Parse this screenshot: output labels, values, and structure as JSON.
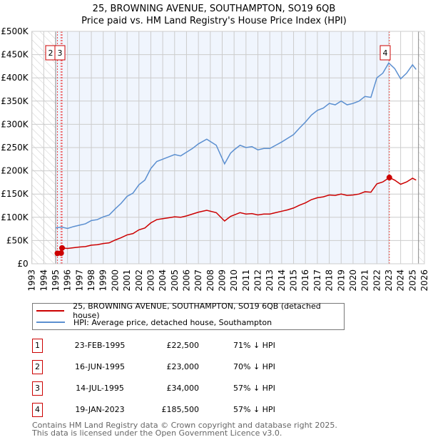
{
  "chart_data": {
    "type": "line",
    "title": "25, BROWNING AVENUE, SOUTHAMPTON, SO19 6QB",
    "subtitle": "Price paid vs. HM Land Registry's House Price Index (HPI)",
    "xlim": [
      1993,
      2026
    ],
    "ylim": [
      0,
      500000
    ],
    "x_ticks": [
      "1993",
      "1994",
      "1995",
      "1996",
      "1997",
      "1998",
      "1999",
      "2000",
      "2001",
      "2002",
      "2003",
      "2004",
      "2005",
      "2006",
      "2007",
      "2008",
      "2009",
      "2010",
      "2011",
      "2012",
      "2013",
      "2014",
      "2015",
      "2016",
      "2017",
      "2018",
      "2019",
      "2020",
      "2021",
      "2022",
      "2023",
      "2024",
      "2025",
      "2026"
    ],
    "y_ticks": [
      {
        "v": 0,
        "label": "£0"
      },
      {
        "v": 50000,
        "label": "£50K"
      },
      {
        "v": 100000,
        "label": "£100K"
      },
      {
        "v": 150000,
        "label": "£150K"
      },
      {
        "v": 200000,
        "label": "£200K"
      },
      {
        "v": 250000,
        "label": "£250K"
      },
      {
        "v": 300000,
        "label": "£300K"
      },
      {
        "v": 350000,
        "label": "£350K"
      },
      {
        "v": 400000,
        "label": "£400K"
      },
      {
        "v": 450000,
        "label": "£450K"
      },
      {
        "v": 500000,
        "label": "£500K"
      }
    ],
    "grid": true,
    "series": [
      {
        "name": "HPI: Average price, detached house, Southampton",
        "color": "#5b8fd0",
        "x": [
          1995,
          1995.5,
          1996,
          1996.5,
          1997,
          1997.5,
          1998,
          1998.5,
          1999,
          1999.5,
          2000,
          2000.5,
          2001,
          2001.5,
          2002,
          2002.5,
          2003,
          2003.5,
          2004,
          2004.5,
          2005,
          2005.5,
          2006,
          2006.5,
          2007,
          2007.7,
          2008.5,
          2009.2,
          2009.7,
          2010,
          2010.5,
          2011,
          2011.5,
          2012,
          2012.5,
          2013,
          2013.5,
          2014,
          2014.5,
          2015,
          2015.5,
          2016,
          2016.5,
          2017,
          2017.5,
          2018,
          2018.5,
          2019,
          2019.5,
          2020,
          2020.5,
          2021,
          2021.5,
          2022,
          2022.5,
          2023,
          2023.5,
          2024,
          2024.5,
          2025,
          2025.3
        ],
        "y": [
          77000,
          79000,
          76000,
          80000,
          83000,
          86000,
          93000,
          95000,
          101000,
          105000,
          118000,
          130000,
          145000,
          152000,
          170000,
          180000,
          205000,
          220000,
          225000,
          230000,
          235000,
          232000,
          240000,
          248000,
          258000,
          268000,
          255000,
          215000,
          238000,
          245000,
          255000,
          250000,
          252000,
          245000,
          248000,
          248000,
          255000,
          262000,
          270000,
          278000,
          292000,
          305000,
          320000,
          330000,
          335000,
          345000,
          342000,
          350000,
          342000,
          345000,
          350000,
          360000,
          358000,
          400000,
          410000,
          432000,
          420000,
          398000,
          410000,
          428000,
          418000
        ]
      },
      {
        "name": "25, BROWNING AVENUE, SOUTHAMPTON, SO19 6QB (detached house)",
        "color": "#cc0000",
        "x": [
          1995.15,
          1995.46,
          1995.54,
          1996,
          1996.5,
          1997,
          1997.5,
          1998,
          1998.5,
          1999,
          1999.5,
          2000,
          2000.5,
          2001,
          2001.5,
          2002,
          2002.5,
          2003,
          2003.5,
          2004,
          2004.5,
          2005,
          2005.5,
          2006,
          2006.5,
          2007,
          2007.7,
          2008.5,
          2009.2,
          2009.7,
          2010,
          2010.5,
          2011,
          2011.5,
          2012,
          2012.5,
          2013,
          2013.5,
          2014,
          2014.5,
          2015,
          2015.5,
          2016,
          2016.5,
          2017,
          2017.5,
          2018,
          2018.5,
          2019,
          2019.5,
          2020,
          2020.5,
          2021,
          2021.5,
          2022,
          2022.5,
          2023.05,
          2023.5,
          2024,
          2024.5,
          2025,
          2025.3
        ],
        "y": [
          22500,
          23000,
          34000,
          33000,
          34500,
          36000,
          37000,
          40000,
          41000,
          43500,
          45000,
          51000,
          56000,
          62000,
          65000,
          73000,
          77000,
          88000,
          95000,
          97000,
          99000,
          101000,
          100000,
          103000,
          107000,
          111000,
          115000,
          110000,
          92000,
          102000,
          105000,
          110000,
          107000,
          108000,
          105000,
          107000,
          107000,
          110000,
          113000,
          116000,
          120000,
          126000,
          131000,
          138000,
          142000,
          144000,
          148000,
          147000,
          150000,
          147000,
          148000,
          150000,
          155000,
          154000,
          172000,
          176000,
          185500,
          180000,
          171000,
          176000,
          184000,
          180000
        ]
      }
    ],
    "sales": [
      {
        "id": "1",
        "x": 1995.15,
        "y": 22500
      },
      {
        "id": "2",
        "x": 1995.46,
        "y": 23000
      },
      {
        "id": "3",
        "x": 1995.54,
        "y": 34000
      },
      {
        "id": "4",
        "x": 2023.05,
        "y": 185500
      }
    ],
    "shaded_from": 1995,
    "shaded_to": 2023.05,
    "hatch_before": 1995,
    "hatch_after": 2025.5
  },
  "legend": {
    "property": "25, BROWNING AVENUE, SOUTHAMPTON, SO19 6QB (detached house)",
    "hpi": "HPI: Average price, detached house, Southampton"
  },
  "transactions": [
    {
      "num": "1",
      "date": "23-FEB-1995",
      "price": "£22,500",
      "hpi": "71% ↓ HPI"
    },
    {
      "num": "2",
      "date": "16-JUN-1995",
      "price": "£23,000",
      "hpi": "70% ↓ HPI"
    },
    {
      "num": "3",
      "date": "14-JUL-1995",
      "price": "£34,000",
      "hpi": "57% ↓ HPI"
    },
    {
      "num": "4",
      "date": "19-JAN-2023",
      "price": "£185,500",
      "hpi": "57% ↓ HPI"
    }
  ],
  "footer": {
    "line1": "Contains HM Land Registry data © Crown copyright and database right 2025.",
    "line2": "This data is licensed under the Open Government Licence v3.0."
  }
}
